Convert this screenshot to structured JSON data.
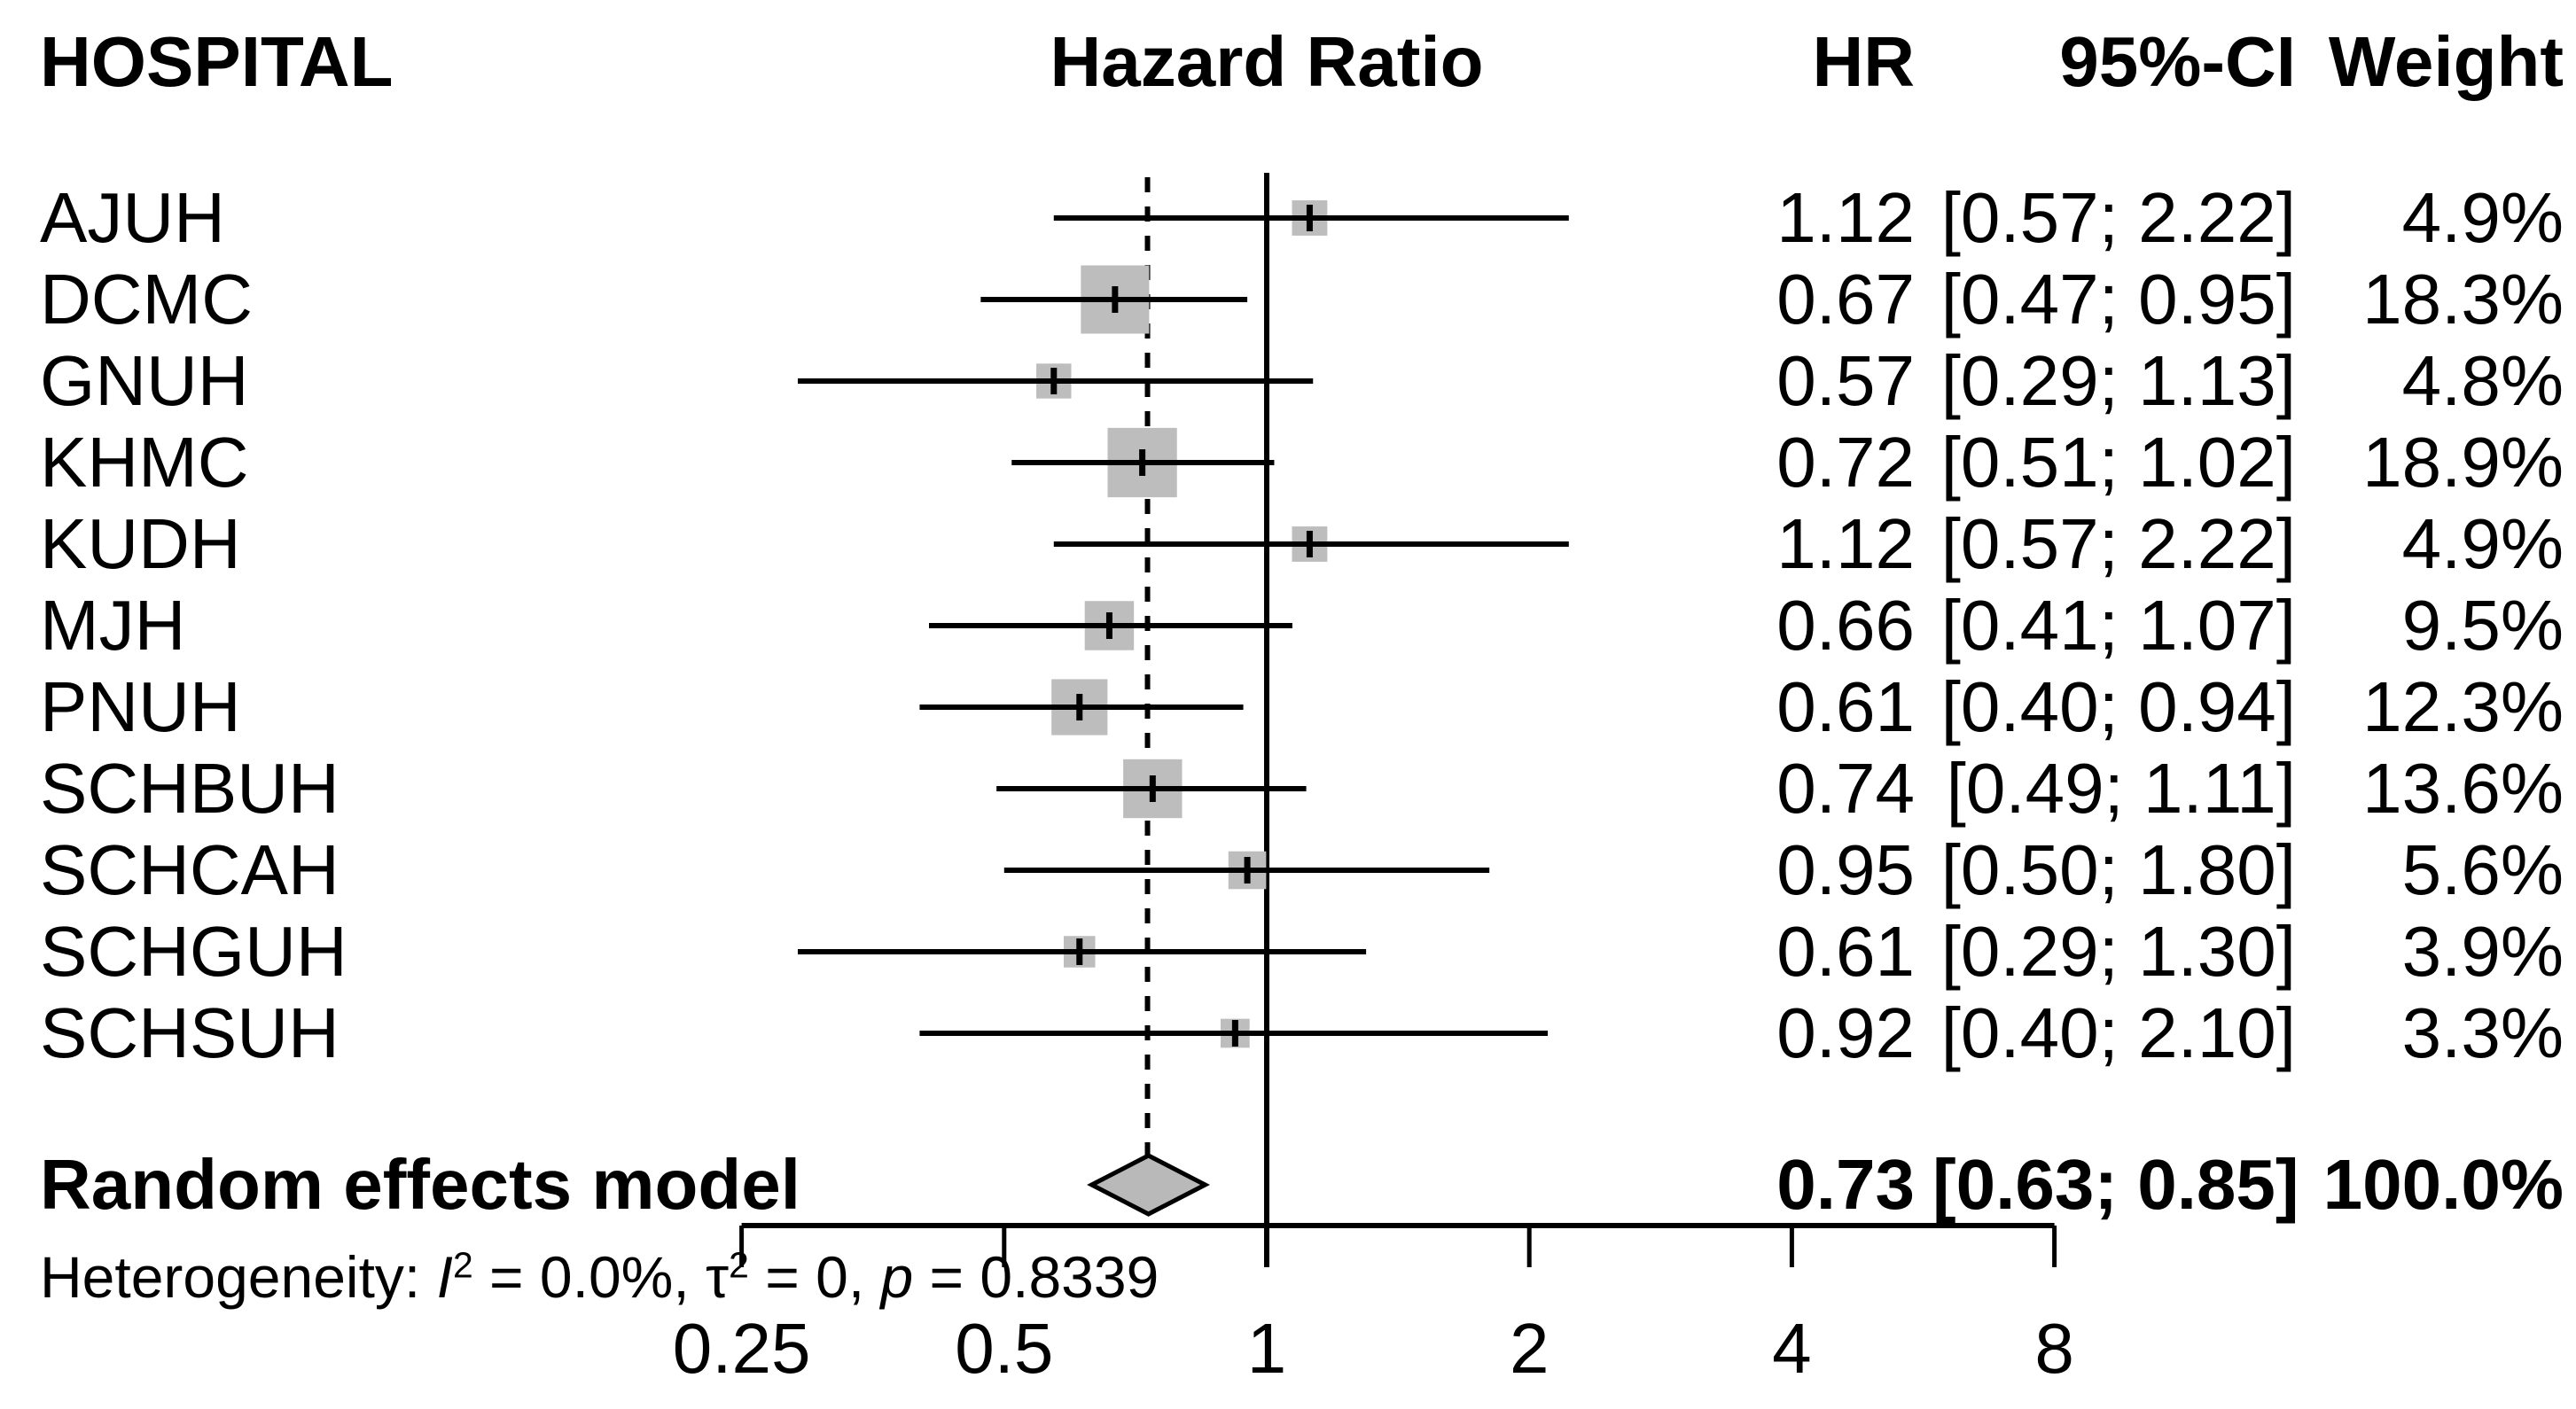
{
  "header": {
    "hospital": "HOSPITAL",
    "hazard_ratio": "Hazard Ratio",
    "hr": "HR",
    "ci": "95%-CI",
    "weight": "Weight"
  },
  "chart_data": {
    "type": "forest",
    "title": "Hazard Ratio forest plot by hospital",
    "x_axis": {
      "scale": "log2",
      "ticks": [
        0.25,
        0.5,
        1,
        2,
        4,
        8
      ],
      "tick_labels": [
        "0.25",
        "0.5",
        "1",
        "2",
        "4",
        "8"
      ],
      "range": [
        0.25,
        8
      ]
    },
    "reference_line": 1,
    "pooled_dashed_line": 0.73,
    "studies": [
      {
        "label": "AJUH",
        "hr": 1.12,
        "ci_low": 0.57,
        "ci_high": 2.22,
        "weight_pct": 4.9,
        "hr_text": "1.12",
        "ci_text": "[0.57; 2.22]",
        "weight_text": "4.9%"
      },
      {
        "label": "DCMC",
        "hr": 0.67,
        "ci_low": 0.47,
        "ci_high": 0.95,
        "weight_pct": 18.3,
        "hr_text": "0.67",
        "ci_text": "[0.47; 0.95]",
        "weight_text": "18.3%"
      },
      {
        "label": "GNUH",
        "hr": 0.57,
        "ci_low": 0.29,
        "ci_high": 1.13,
        "weight_pct": 4.8,
        "hr_text": "0.57",
        "ci_text": "[0.29; 1.13]",
        "weight_text": "4.8%"
      },
      {
        "label": "KHMC",
        "hr": 0.72,
        "ci_low": 0.51,
        "ci_high": 1.02,
        "weight_pct": 18.9,
        "hr_text": "0.72",
        "ci_text": "[0.51; 1.02]",
        "weight_text": "18.9%"
      },
      {
        "label": "KUDH",
        "hr": 1.12,
        "ci_low": 0.57,
        "ci_high": 2.22,
        "weight_pct": 4.9,
        "hr_text": "1.12",
        "ci_text": "[0.57; 2.22]",
        "weight_text": "4.9%"
      },
      {
        "label": "MJH",
        "hr": 0.66,
        "ci_low": 0.41,
        "ci_high": 1.07,
        "weight_pct": 9.5,
        "hr_text": "0.66",
        "ci_text": "[0.41; 1.07]",
        "weight_text": "9.5%"
      },
      {
        "label": "PNUH",
        "hr": 0.61,
        "ci_low": 0.4,
        "ci_high": 0.94,
        "weight_pct": 12.3,
        "hr_text": "0.61",
        "ci_text": "[0.40; 0.94]",
        "weight_text": "12.3%"
      },
      {
        "label": "SCHBUH",
        "hr": 0.74,
        "ci_low": 0.49,
        "ci_high": 1.11,
        "weight_pct": 13.6,
        "hr_text": "0.74",
        "ci_text": "[0.49; 1.11]",
        "weight_text": "13.6%"
      },
      {
        "label": "SCHCAH",
        "hr": 0.95,
        "ci_low": 0.5,
        "ci_high": 1.8,
        "weight_pct": 5.6,
        "hr_text": "0.95",
        "ci_text": "[0.50; 1.80]",
        "weight_text": "5.6%"
      },
      {
        "label": "SCHGUH",
        "hr": 0.61,
        "ci_low": 0.29,
        "ci_high": 1.3,
        "weight_pct": 3.9,
        "hr_text": "0.61",
        "ci_text": "[0.29; 1.30]",
        "weight_text": "3.9%"
      },
      {
        "label": "SCHSUH",
        "hr": 0.92,
        "ci_low": 0.4,
        "ci_high": 2.1,
        "weight_pct": 3.3,
        "hr_text": "0.92",
        "ci_text": "[0.40; 2.10]",
        "weight_text": "3.3%"
      }
    ],
    "summary": {
      "label": "Random effects model",
      "hr": 0.73,
      "ci_low": 0.63,
      "ci_high": 0.85,
      "hr_text": "0.73",
      "ci_text": "[0.63; 0.85]",
      "weight_text": "100.0%"
    },
    "heterogeneity": {
      "prefix": "Heterogeneity: ",
      "i_symbol": "I",
      "i_sup": "2",
      "i_value": " = 0.0%, ",
      "tau_symbol": "τ",
      "tau_sup": "2",
      "tau_value": " = 0, ",
      "p_symbol": "p",
      "p_value": " = 0.8339"
    },
    "legend_position": "none",
    "grid": false
  },
  "colors": {
    "square_fill": "#bdbdbd",
    "diamond_fill": "#b9b9b9",
    "line": "#000000",
    "text": "#000000",
    "background": "#ffffff"
  }
}
